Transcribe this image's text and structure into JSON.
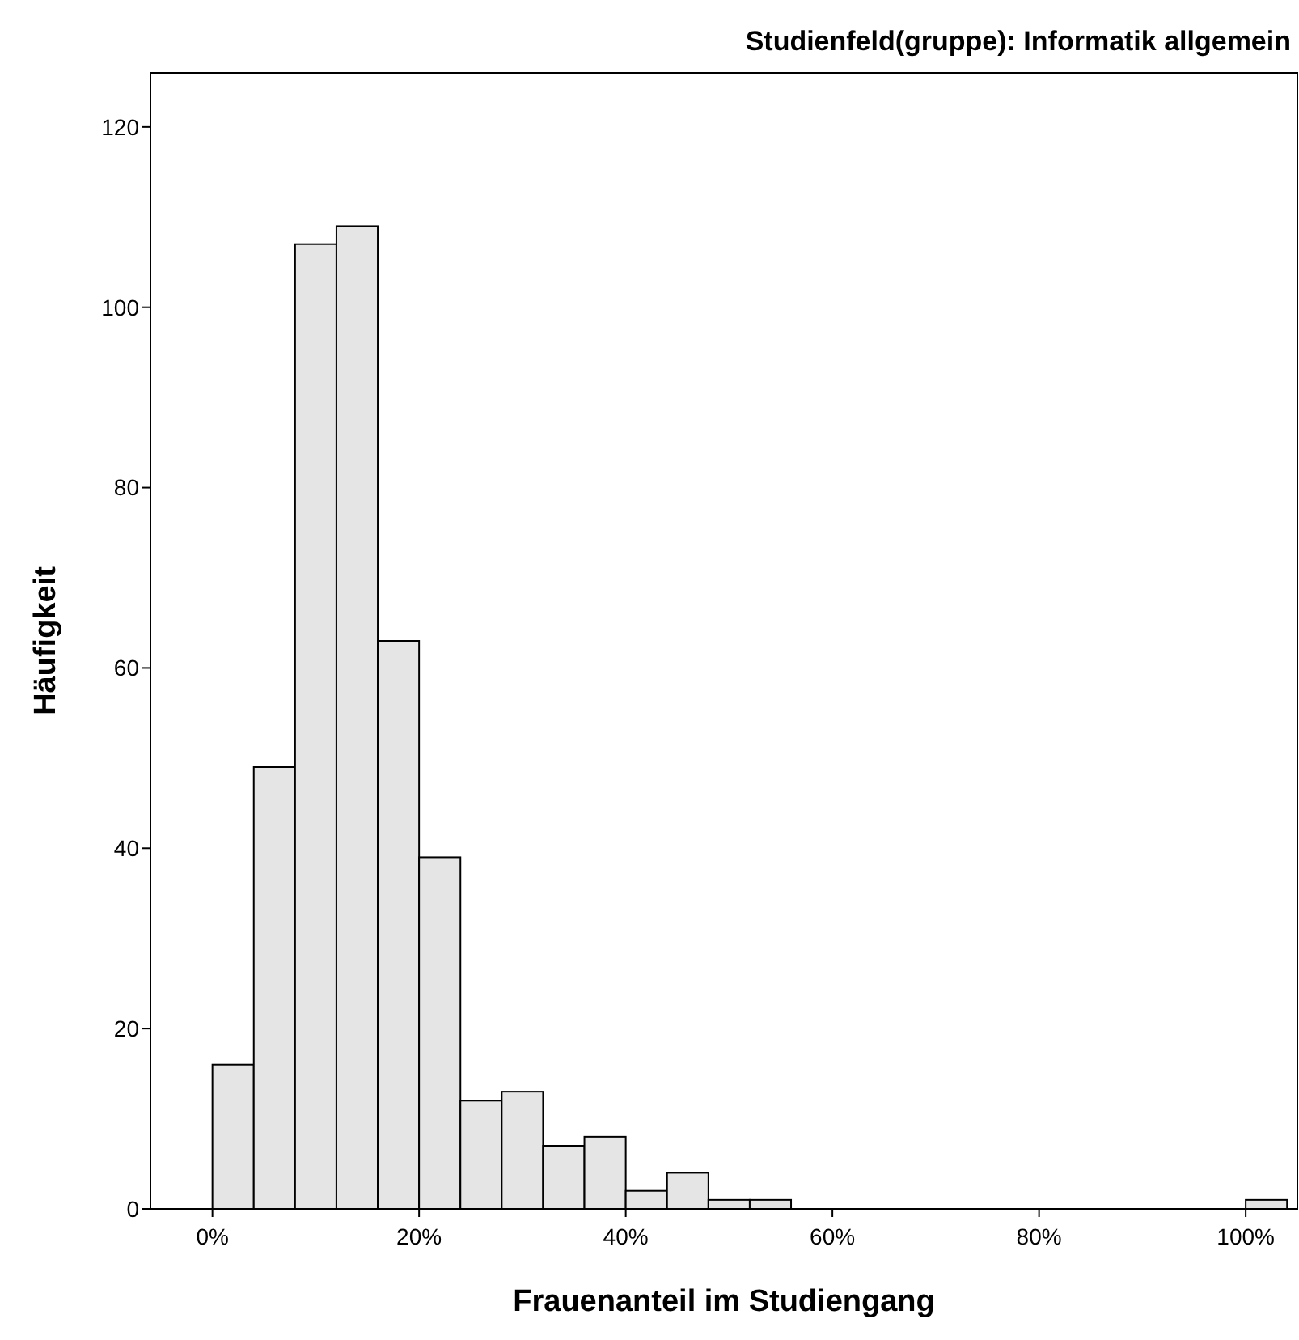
{
  "chart_data": {
    "type": "histogram",
    "title": "Studienfeld(gruppe): Informatik allgemein",
    "xlabel": "Frauenanteil im Studiengang",
    "ylabel": "Häufigkeit",
    "bins": [
      0,
      4,
      8,
      12,
      16,
      20,
      24,
      28,
      32,
      36,
      40,
      44,
      48,
      52,
      56,
      60,
      64,
      68,
      72,
      76,
      80,
      84,
      88,
      92,
      96,
      100,
      104
    ],
    "values": [
      16,
      49,
      107,
      109,
      63,
      39,
      12,
      13,
      7,
      8,
      2,
      4,
      1,
      1,
      0,
      0,
      0,
      0,
      0,
      0,
      0,
      0,
      0,
      0,
      0,
      1
    ],
    "color": "#e5e5e5",
    "xlim": [
      -6,
      105
    ],
    "xticks": [
      {
        "value": 0,
        "label": "0%"
      },
      {
        "value": 20,
        "label": "20%"
      },
      {
        "value": 40,
        "label": "40%"
      },
      {
        "value": 60,
        "label": "60%"
      },
      {
        "value": 80,
        "label": "80%"
      },
      {
        "value": 100,
        "label": "100%"
      }
    ],
    "ylim": [
      0,
      126
    ],
    "yticks": [
      0,
      20,
      40,
      60,
      80,
      100,
      120
    ],
    "grid": false
  }
}
